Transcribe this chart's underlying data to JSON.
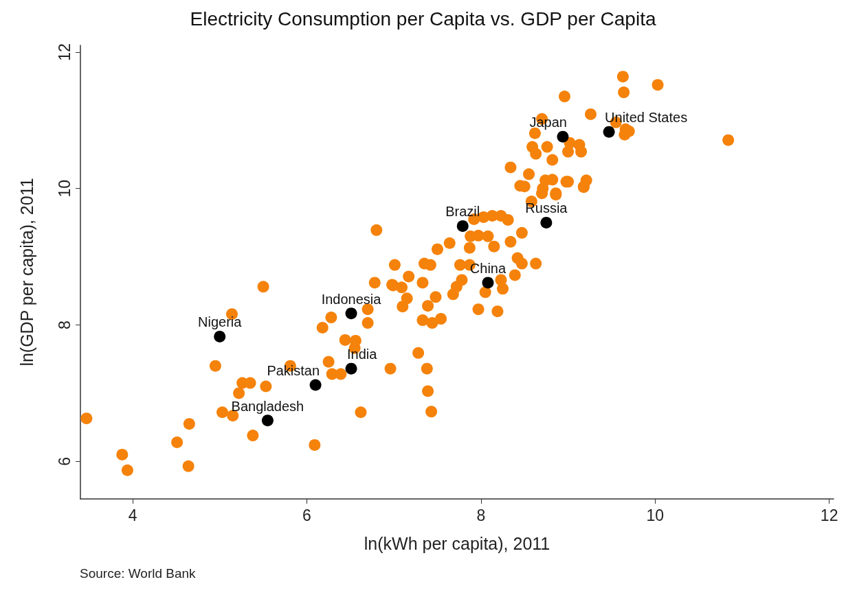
{
  "chart_data": {
    "type": "scatter",
    "title": "Electricity Consumption per Capita vs. GDP per Capita",
    "xlabel": "ln(kWh per capita), 2011",
    "ylabel": "ln(GDP per capita), 2011",
    "xlim": [
      3.4,
      12.05
    ],
    "xticks": [
      4,
      6,
      8,
      10,
      12
    ],
    "ylim": [
      5.45,
      12.1
    ],
    "yticks": [
      6,
      8,
      10,
      12
    ],
    "grid": false,
    "marker": "circle",
    "series": [
      {
        "color": "#f5820a",
        "x": [
          3.47,
          3.88,
          3.94,
          4.64,
          4.65,
          4.51,
          5.38,
          6.09,
          6.62,
          5.5,
          5.14,
          4.95,
          5.26,
          5.35,
          5.22,
          5.53,
          5.03,
          5.15,
          6.18,
          6.28,
          6.7,
          6.7,
          6.78,
          6.44,
          6.56,
          6.55,
          6.25,
          5.81,
          6.29,
          6.39,
          6.96,
          7.28,
          7.38,
          7.39,
          7.43,
          6.98,
          7.09,
          7.33,
          7.15,
          7.1,
          7.48,
          7.39,
          7.33,
          7.44,
          7.54,
          6.8,
          7.01,
          6.99,
          7.17,
          7.35,
          7.42,
          7.5,
          7.64,
          7.68,
          7.72,
          7.78,
          7.76,
          7.87,
          7.88,
          7.87,
          7.97,
          8.08,
          8.15,
          7.92,
          8.03,
          8.13,
          8.23,
          8.31,
          8.34,
          8.47,
          8.05,
          7.97,
          8.19,
          8.25,
          8.23,
          8.39,
          8.42,
          8.47,
          8.63,
          8.5,
          8.71,
          8.86,
          9.0,
          9.18,
          8.82,
          9.63,
          10.03,
          9.64,
          8.96,
          9.26,
          8.7,
          8.62,
          9.55,
          9.66,
          9.65,
          9.7,
          10.84,
          8.59,
          8.63,
          8.76,
          8.82,
          9.02,
          9.13,
          9.15,
          9.0,
          8.34,
          8.55,
          8.45,
          8.74,
          8.98,
          9.21,
          9.18,
          8.7,
          8.86,
          8.58
        ],
        "values": [
          6.63,
          6.1,
          5.87,
          5.93,
          6.55,
          6.28,
          6.38,
          6.24,
          6.72,
          8.56,
          8.16,
          7.4,
          7.15,
          7.15,
          7.0,
          7.1,
          6.72,
          6.67,
          7.96,
          8.11,
          8.23,
          8.03,
          8.62,
          7.78,
          7.77,
          7.66,
          7.46,
          7.4,
          7.28,
          7.28,
          7.36,
          7.59,
          7.36,
          7.03,
          6.73,
          8.59,
          8.55,
          8.62,
          8.39,
          8.27,
          8.41,
          8.28,
          8.07,
          8.03,
          8.09,
          9.39,
          8.88,
          8.58,
          8.71,
          8.9,
          8.88,
          9.11,
          9.2,
          8.45,
          8.56,
          8.66,
          8.88,
          8.88,
          9.3,
          9.13,
          9.31,
          9.3,
          9.15,
          9.55,
          9.58,
          9.6,
          9.6,
          9.54,
          9.22,
          9.35,
          8.48,
          8.23,
          8.2,
          8.53,
          8.66,
          8.73,
          8.98,
          8.9,
          8.9,
          10.03,
          10.0,
          9.93,
          10.1,
          10.03,
          10.13,
          11.64,
          11.52,
          11.41,
          11.35,
          11.09,
          11.02,
          10.81,
          10.97,
          10.87,
          10.79,
          10.84,
          10.71,
          10.61,
          10.51,
          10.61,
          10.42,
          10.67,
          10.64,
          10.54,
          10.54,
          10.31,
          10.21,
          10.04,
          10.12,
          10.1,
          10.12,
          10.02,
          9.93,
          9.91,
          9.81
        ]
      },
      {
        "color": "#000000",
        "x": [
          5.0,
          5.55,
          6.1,
          6.51,
          6.51,
          7.79,
          8.08,
          8.75,
          8.94,
          9.47
        ],
        "values": [
          7.83,
          6.6,
          7.12,
          7.36,
          8.17,
          9.45,
          8.62,
          9.5,
          10.76,
          10.83
        ]
      }
    ],
    "annotations": [
      {
        "text": "Nigeria",
        "x": 5.0,
        "y": 7.83
      },
      {
        "text": "Bangladesh",
        "x": 5.55,
        "y": 6.6
      },
      {
        "text": "Pakistan",
        "x": 6.1,
        "y": 7.12
      },
      {
        "text": "India",
        "x": 6.51,
        "y": 7.36
      },
      {
        "text": "Indonesia",
        "x": 6.51,
        "y": 8.17
      },
      {
        "text": "Brazil",
        "x": 7.79,
        "y": 9.45
      },
      {
        "text": "China",
        "x": 8.08,
        "y": 8.62
      },
      {
        "text": "Russia",
        "x": 8.75,
        "y": 9.5
      },
      {
        "text": "Japan",
        "x": 8.94,
        "y": 10.76
      },
      {
        "text": "United States",
        "x": 9.47,
        "y": 10.83
      },
      "Source: World Bank"
    ]
  }
}
